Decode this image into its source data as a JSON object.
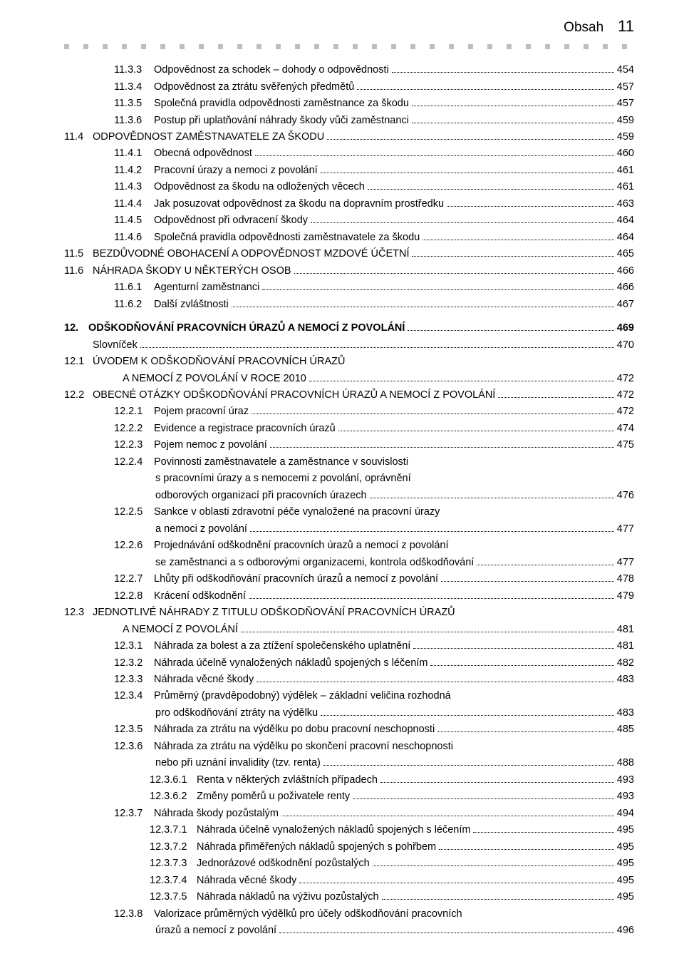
{
  "header": {
    "title": "Obsah",
    "page": "11"
  },
  "rows": [
    {
      "lvl": 3,
      "num": "11.3.3",
      "text": "Odpovědnost za schodek – dohody o odpovědnosti",
      "page": "454",
      "w": 4
    },
    {
      "lvl": 3,
      "num": "11.3.4",
      "text": "Odpovědnost za ztrátu svěřených předmětů",
      "page": "457",
      "w": 4
    },
    {
      "lvl": 3,
      "num": "11.3.5",
      "text": "Společná pravidla odpovědnosti zaměstnance za škodu",
      "page": "457",
      "w": 4
    },
    {
      "lvl": 3,
      "num": "11.3.6",
      "text": "Postup při uplatňování náhrady škody vůči zaměstnanci",
      "page": "459",
      "w": 4
    },
    {
      "lvl": 1,
      "num": "11.4",
      "text": "ODPOVĚDNOST ZAMĚSTNAVATELE ZA ŠKODU",
      "page": "459",
      "w": 2
    },
    {
      "lvl": 3,
      "num": "11.4.1",
      "text": "Obecná odpovědnost",
      "page": "460",
      "w": 4
    },
    {
      "lvl": 3,
      "num": "11.4.2",
      "text": "Pracovní úrazy a nemoci z povolání",
      "page": "461",
      "w": 4
    },
    {
      "lvl": 3,
      "num": "11.4.3",
      "text": "Odpovědnost za škodu na odložených věcech",
      "page": "461",
      "w": 4
    },
    {
      "lvl": 3,
      "num": "11.4.4",
      "text": "Jak posuzovat odpovědnost za škodu na dopravním prostředku",
      "page": "463",
      "w": 4
    },
    {
      "lvl": 3,
      "num": "11.4.5",
      "text": "Odpovědnost při odvracení škody",
      "page": "464",
      "w": 4
    },
    {
      "lvl": 3,
      "num": "11.4.6",
      "text": "Společná pravidla odpovědnosti zaměstnavatele za škodu",
      "page": "464",
      "w": 4
    },
    {
      "lvl": 1,
      "num": "11.5",
      "text": "BEZDŮVODNÉ OBOHACENÍ A ODPOVĚDNOST MZDOVÉ ÚČETNÍ",
      "page": "465",
      "w": 2
    },
    {
      "lvl": 1,
      "num": "11.6",
      "text": "NÁHRADA ŠKODY U NĚKTERÝCH OSOB",
      "page": "466",
      "w": 2
    },
    {
      "lvl": 3,
      "num": "11.6.1",
      "text": "Agenturní zaměstnanci",
      "page": "466",
      "w": 4
    },
    {
      "lvl": 3,
      "num": "11.6.2",
      "text": "Další zvláštnosti",
      "page": "467",
      "w": 4
    },
    {
      "spacer": true
    },
    {
      "lvl": 0,
      "num": "12.",
      "text": "ODŠKODŇOVÁNÍ PRACOVNÍCH ÚRAZŮ A NEMOCÍ Z POVOLÁNÍ",
      "page": "469",
      "bold": true,
      "w": 2
    },
    {
      "lvl": 1,
      "num": "",
      "text": "Slovníček",
      "page": "470",
      "w": 2
    },
    {
      "lvl": 1,
      "num": "12.1",
      "text": "ÚVODEM K ODŠKODŇOVÁNÍ PRACOVNÍCH ÚRAZŮ",
      "noLeader": true,
      "w": 2
    },
    {
      "contLvl": 1,
      "text": "A NEMOCÍ Z POVOLÁNÍ V ROCE 2010",
      "page": "472"
    },
    {
      "lvl": 1,
      "num": "12.2",
      "text": "OBECNÉ OTÁZKY ODŠKODŇOVÁNÍ PRACOVNÍCH ÚRAZŮ A NEMOCÍ Z POVOLÁNÍ",
      "page": "472",
      "w": 2
    },
    {
      "lvl": 3,
      "num": "12.2.1",
      "text": "Pojem pracovní úraz",
      "page": "472",
      "w": 4
    },
    {
      "lvl": 3,
      "num": "12.2.2",
      "text": "Evidence a registrace pracovních úrazů",
      "page": "474",
      "w": 4
    },
    {
      "lvl": 3,
      "num": "12.2.3",
      "text": "Pojem nemoc z povolání",
      "page": "475",
      "w": 4
    },
    {
      "lvl": 3,
      "num": "12.2.4",
      "text": "Povinnosti zaměstnavatele a zaměstnance v souvislosti",
      "noLeader": true,
      "w": 4
    },
    {
      "contLvl": 3,
      "text": "s pracovními úrazy a s nemocemi z povolání, oprávnění",
      "noLeader": true
    },
    {
      "contLvl": 3,
      "text": "odborových organizací při pracovních úrazech",
      "page": "476"
    },
    {
      "lvl": 3,
      "num": "12.2.5",
      "text": "Sankce v oblasti zdravotní péče vynaložené na pracovní úrazy",
      "noLeader": true,
      "w": 4
    },
    {
      "contLvl": 3,
      "text": "a nemoci z povolání",
      "page": "477"
    },
    {
      "lvl": 3,
      "num": "12.2.6",
      "text": "Projednávání odškodnění pracovních úrazů a nemocí z povolání",
      "noLeader": true,
      "w": 4
    },
    {
      "contLvl": 3,
      "text": "se zaměstnanci a s odborovými organizacemi, kontrola odškodňování",
      "page": "477"
    },
    {
      "lvl": 3,
      "num": "12.2.7",
      "text": "Lhůty při odškodňování pracovních úrazů a nemocí z povolání",
      "page": "478",
      "w": 4
    },
    {
      "lvl": 3,
      "num": "12.2.8",
      "text": "Krácení odškodnění",
      "page": "479",
      "w": 4
    },
    {
      "lvl": 1,
      "num": "12.3",
      "text": "JEDNOTLIVÉ NÁHRADY Z TITULU ODŠKODŇOVÁNÍ PRACOVNÍCH ÚRAZŮ",
      "noLeader": true,
      "w": 2
    },
    {
      "contLvl": 1,
      "text": "A NEMOCÍ Z POVOLÁNÍ",
      "page": "481"
    },
    {
      "lvl": 3,
      "num": "12.3.1",
      "text": "Náhrada za bolest a za ztížení společenského uplatnění",
      "page": "481",
      "w": 4
    },
    {
      "lvl": 3,
      "num": "12.3.2",
      "text": "Náhrada účelně vynaložených nákladů spojených s léčením",
      "page": "482",
      "w": 4
    },
    {
      "lvl": 3,
      "num": "12.3.3",
      "text": "Náhrada věcné škody",
      "page": "483",
      "w": 4
    },
    {
      "lvl": 3,
      "num": "12.3.4",
      "text": "Průměrný (pravděpodobný) výdělek – základní veličina rozhodná",
      "noLeader": true,
      "w": 4
    },
    {
      "contLvl": 3,
      "text": "pro odškodňování ztráty na výdělku",
      "page": "483"
    },
    {
      "lvl": 3,
      "num": "12.3.5",
      "text": "Náhrada za ztrátu na výdělku po dobu pracovní neschopnosti",
      "page": "485",
      "w": 4
    },
    {
      "lvl": 3,
      "num": "12.3.6",
      "text": "Náhrada za ztrátu na výdělku po skončení pracovní neschopnosti",
      "noLeader": true,
      "w": 4
    },
    {
      "contLvl": 3,
      "text": "nebo při uznání invalidity (tzv. renta)",
      "page": "488"
    },
    {
      "lvl": 4,
      "num": "12.3.6.1",
      "text": "Renta v některých zvláštních případech",
      "page": "493",
      "w": 5
    },
    {
      "lvl": 4,
      "num": "12.3.6.2",
      "text": "Změny poměrů u poživatele renty",
      "page": "493",
      "w": 5
    },
    {
      "lvl": 3,
      "num": "12.3.7",
      "text": "Náhrada škody pozůstalým",
      "page": "494",
      "w": 4
    },
    {
      "lvl": 4,
      "num": "12.3.7.1",
      "text": "Náhrada účelně vynaložených nákladů spojených s léčením",
      "page": "495",
      "w": 5
    },
    {
      "lvl": 4,
      "num": "12.3.7.2",
      "text": "Náhrada přiměřených nákladů spojených s pohřbem",
      "page": "495",
      "w": 5
    },
    {
      "lvl": 4,
      "num": "12.3.7.3",
      "text": "Jednorázové odškodnění pozůstalých",
      "page": "495",
      "w": 5
    },
    {
      "lvl": 4,
      "num": "12.3.7.4",
      "text": "Náhrada věcné škody",
      "page": "495",
      "w": 5
    },
    {
      "lvl": 4,
      "num": "12.3.7.5",
      "text": "Náhrada nákladů na výživu pozůstalých",
      "page": "495",
      "w": 5
    },
    {
      "lvl": 3,
      "num": "12.3.8",
      "text": "Valorizace průměrných výdělků pro účely odškodňování pracovních",
      "noLeader": true,
      "w": 4
    },
    {
      "contLvl": 3,
      "text": "úrazů a nemocí z povolání",
      "page": "496"
    }
  ]
}
